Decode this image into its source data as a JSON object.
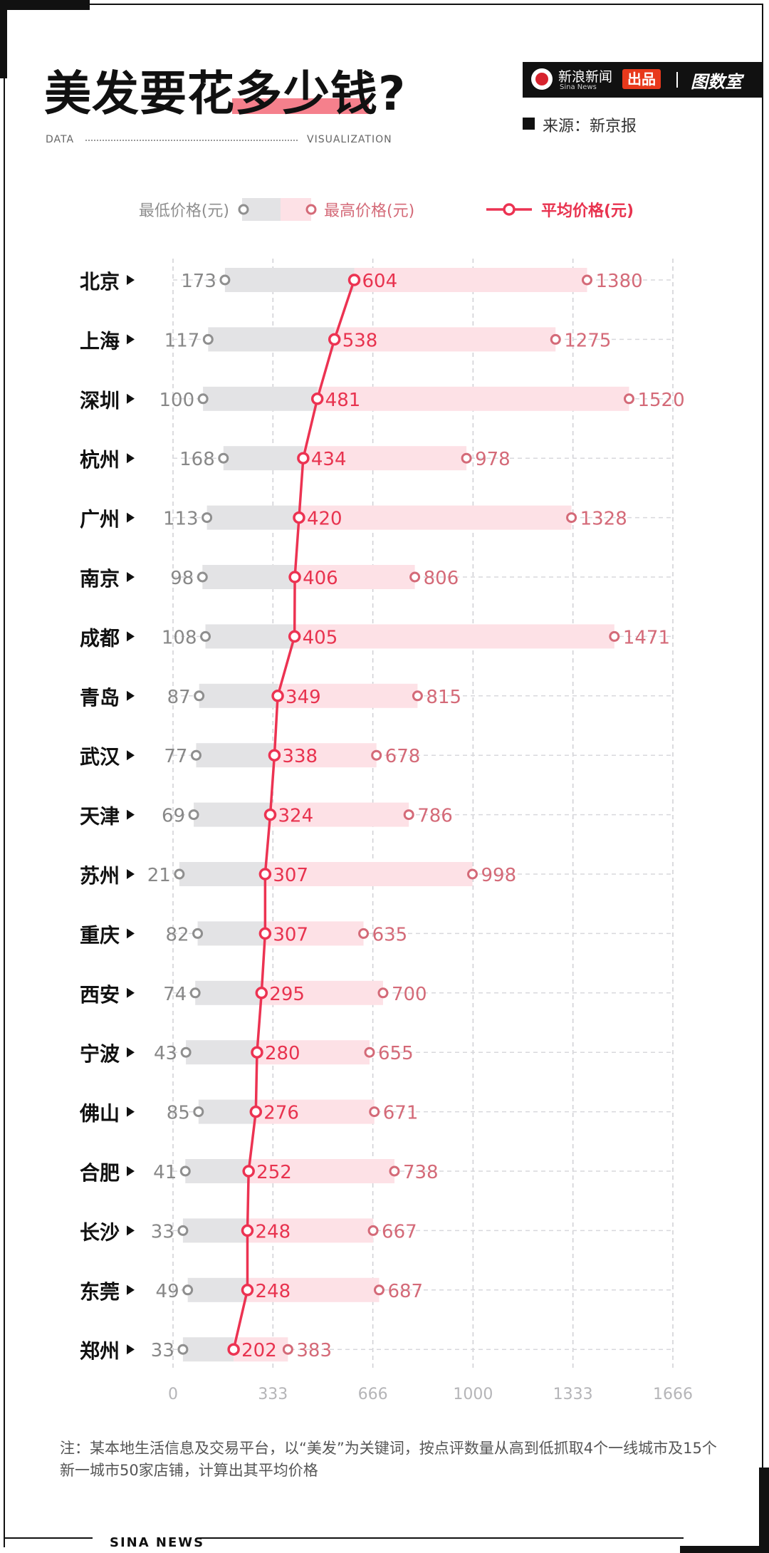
{
  "header": {
    "title": "美发要花多少钱?",
    "left_tag": "DATA",
    "right_tag": "VISUALIZATION",
    "brand_name": "新浪新闻",
    "brand_en": "Sina News",
    "brand_badge": "出品",
    "brand_room": "图数室",
    "source": "来源：新京报"
  },
  "footer": {
    "note": "注：某本地生活信息及交易平台，以“美发”为关键词，按点评数量从高到低抓取4个一线城市及15个新一城市50家店铺，计算出其平均价格",
    "brand": "SINA NEWS"
  },
  "colors": {
    "min_bar": "#e3e3e5",
    "max_bar": "#fde1e6",
    "avg_line": "#ec3352",
    "min_text": "#888888",
    "max_text": "#d46a78",
    "avg_text": "#e8334f"
  },
  "chart_data": {
    "type": "bar",
    "categories": [
      "北京",
      "上海",
      "深圳",
      "杭州",
      "广州",
      "南京",
      "成都",
      "青岛",
      "武汉",
      "天津",
      "苏州",
      "重庆",
      "西安",
      "宁波",
      "佛山",
      "合肥",
      "长沙",
      "东莞",
      "郑州"
    ],
    "series": [
      {
        "name": "最低价格(元)",
        "values": [
          173,
          117,
          100,
          168,
          113,
          98,
          108,
          87,
          77,
          69,
          21,
          82,
          74,
          43,
          85,
          41,
          33,
          49,
          33
        ]
      },
      {
        "name": "最高价格(元)",
        "values": [
          1380,
          1275,
          1520,
          978,
          1328,
          806,
          1471,
          815,
          678,
          786,
          998,
          635,
          700,
          655,
          671,
          738,
          667,
          687,
          383
        ]
      },
      {
        "name": "平均价格(元)",
        "values": [
          604,
          538,
          481,
          434,
          420,
          406,
          405,
          349,
          338,
          324,
          307,
          307,
          295,
          280,
          276,
          252,
          248,
          248,
          202
        ]
      }
    ],
    "x_ticks": [
      "0",
      "333",
      "666",
      "1000",
      "1333",
      "1666"
    ],
    "x_tick_values": [
      0,
      333,
      666,
      1000,
      1333,
      1666
    ],
    "xlim": [
      0,
      1666
    ],
    "grid": true,
    "legend_position": "top"
  }
}
